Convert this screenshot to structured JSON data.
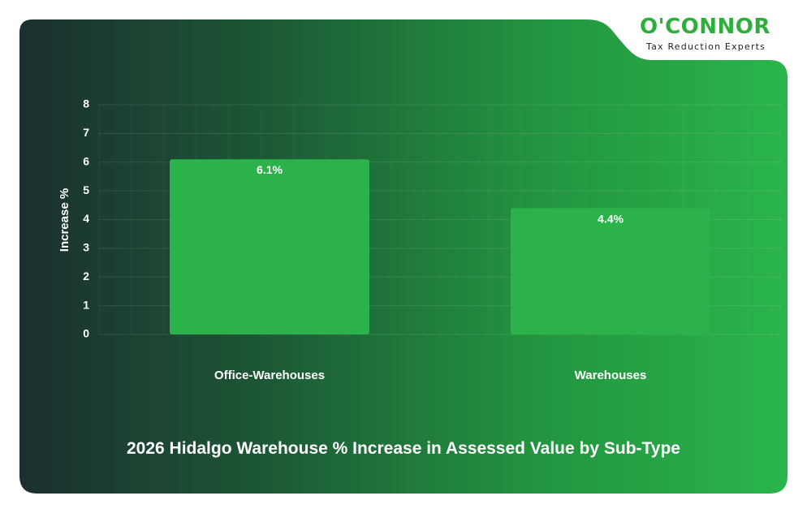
{
  "brand": {
    "logo_text": "O'CONNOR",
    "tagline": "Tax Reduction Experts"
  },
  "colors": {
    "bar": "#2bb24a",
    "background_dark": "#1c3a33",
    "background_light": "#2ab54b",
    "brand_green": "#2fae3e"
  },
  "chart_data": {
    "type": "bar",
    "title": "2026 Hidalgo Warehouse % Increase in Assessed Value by Sub-Type",
    "ylabel": "Increase %",
    "xlabel": "",
    "categories": [
      "Office-Warehouses",
      "Warehouses"
    ],
    "values": [
      6.1,
      4.4
    ],
    "data_labels": [
      "6.1%",
      "4.4%"
    ],
    "ylim": [
      0,
      8
    ],
    "yticks": [
      "0",
      "1",
      "2",
      "3",
      "4",
      "5",
      "6",
      "7",
      "8"
    ],
    "grid": true,
    "legend": "none"
  }
}
